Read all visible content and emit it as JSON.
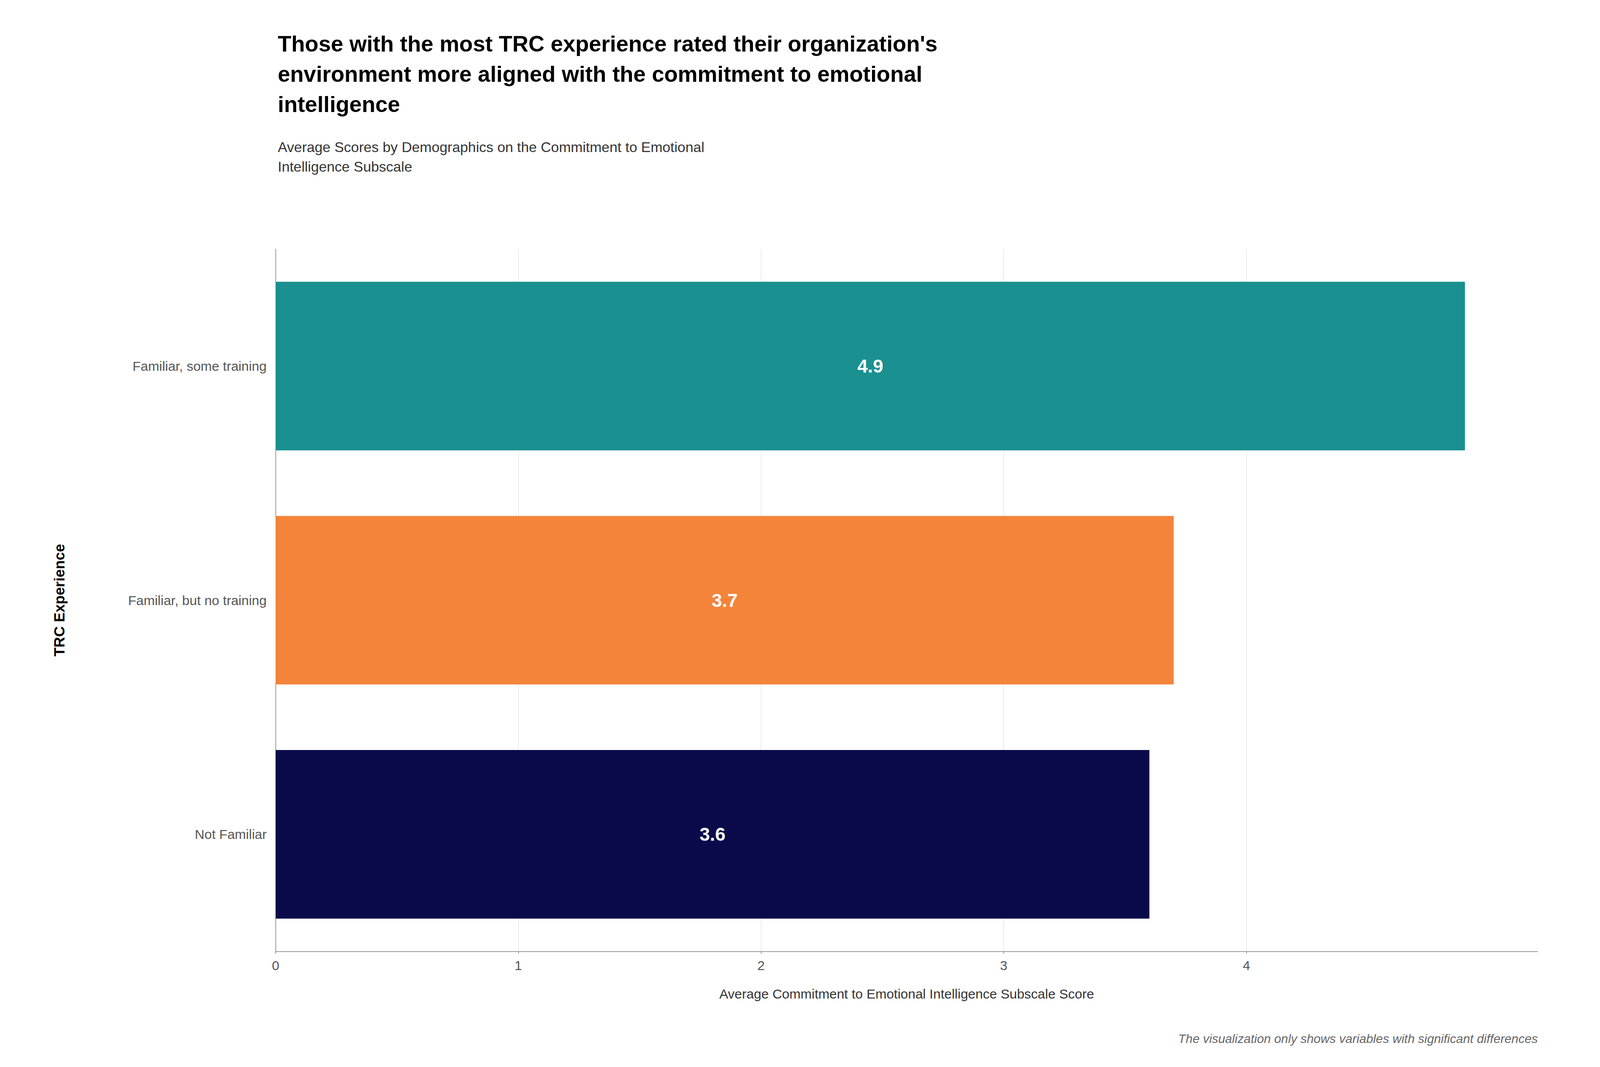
{
  "chart_data": {
    "type": "bar",
    "orientation": "horizontal",
    "title": "Those with the most TRC experience rated their organization's\nenvironment more aligned with the commitment to emotional\nintelligence",
    "subtitle": "Average Scores by Demographics on the Commitment to Emotional\nIntelligence Subscale",
    "categories": [
      "Familiar, some training",
      "Familiar, but no training",
      "Not Familiar"
    ],
    "values": [
      4.9,
      3.7,
      3.6
    ],
    "colors": [
      "#1A9090",
      "#F4843A",
      "#0A0A4B"
    ],
    "xlabel": "Average Commitment to Emotional Intelligence Subscale Score",
    "ylabel": "TRC Experience",
    "xlim": [
      0,
      5.2
    ],
    "xticks": [
      0,
      1,
      2,
      3,
      4
    ],
    "grid": true,
    "data_labels": true,
    "footnote": "The visualization only shows variables with significant differences"
  }
}
